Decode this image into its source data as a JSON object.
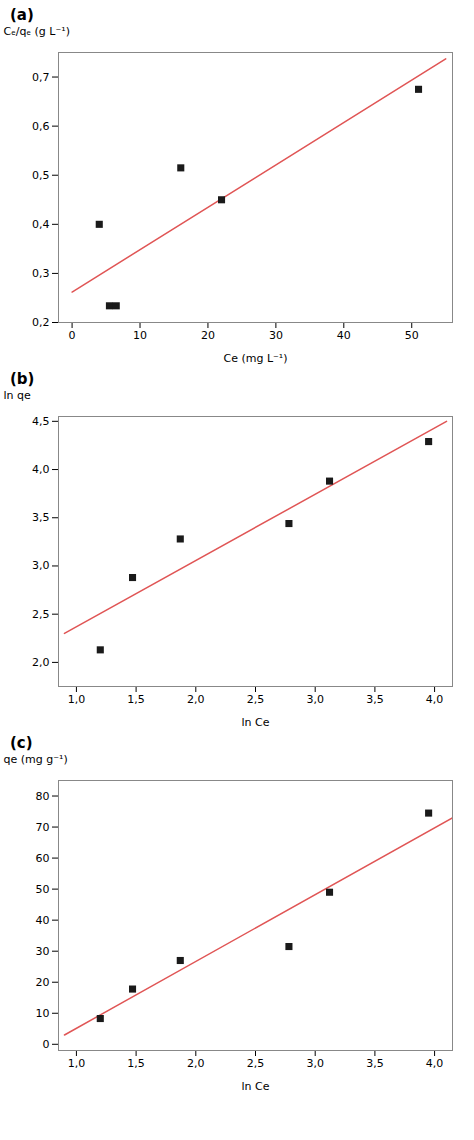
{
  "chart_data": [
    {
      "type": "scatter",
      "title": "(a)",
      "x_label": "Ce (mg L⁻¹)",
      "y_label": "Cₑ/qₑ (g L⁻¹)",
      "series": [
        {
          "type": "line",
          "color": "#e05555",
          "line_style": "solid",
          "x": [
            0,
            55
          ],
          "values": [
            0.262,
            0.737
          ]
        },
        {
          "type": "scatter",
          "color": "#1a1a1a",
          "marker": "square",
          "x": [
            4.0,
            5.5,
            6.5,
            16.0,
            22.0,
            51.0
          ],
          "values": [
            0.4,
            0.234,
            0.234,
            0.515,
            0.45,
            0.675
          ]
        }
      ],
      "xlim": [
        -2,
        56
      ],
      "ylim": [
        0.2,
        0.75
      ],
      "xticks": [
        0,
        10,
        20,
        30,
        40,
        50
      ],
      "yticks": [
        {
          "value": 0.2,
          "label": "0,2"
        },
        {
          "value": 0.3,
          "label": "0,3"
        },
        {
          "value": 0.4,
          "label": "0,4"
        },
        {
          "value": 0.5,
          "label": "0,5"
        },
        {
          "value": 0.6,
          "label": "0,6"
        },
        {
          "value": 0.7,
          "label": "0,7"
        }
      ]
    },
    {
      "type": "scatter",
      "title": "(b)",
      "x_label": "ln Ce",
      "y_label": "ln qe",
      "series": [
        {
          "type": "line",
          "color": "#e05555",
          "line_style": "solid",
          "x": [
            0.9,
            4.1
          ],
          "values": [
            2.3,
            4.5
          ]
        },
        {
          "type": "scatter",
          "color": "#1a1a1a",
          "marker": "square",
          "x": [
            1.2,
            1.47,
            1.87,
            2.78,
            3.12,
            3.95
          ],
          "values": [
            2.13,
            2.88,
            3.28,
            3.44,
            3.88,
            4.29
          ]
        }
      ],
      "xlim": [
        0.85,
        4.15
      ],
      "ylim": [
        1.75,
        4.55
      ],
      "xticks": [
        {
          "value": 1.0,
          "label": "1,0"
        },
        {
          "value": 1.5,
          "label": "1,5"
        },
        {
          "value": 2.0,
          "label": "2,0"
        },
        {
          "value": 2.5,
          "label": "2,5"
        },
        {
          "value": 3.0,
          "label": "3,0"
        },
        {
          "value": 3.5,
          "label": "3,5"
        },
        {
          "value": 4.0,
          "label": "4,0"
        }
      ],
      "yticks": [
        {
          "value": 2.0,
          "label": "2,0"
        },
        {
          "value": 2.5,
          "label": "2,5"
        },
        {
          "value": 3.0,
          "label": "3,0"
        },
        {
          "value": 3.5,
          "label": "3,5"
        },
        {
          "value": 4.0,
          "label": "4,0"
        },
        {
          "value": 4.5,
          "label": "4,5"
        }
      ]
    },
    {
      "type": "scatter",
      "title": "(c)",
      "x_label": "ln Ce",
      "y_label": "qe (mg g⁻¹)",
      "series": [
        {
          "type": "line",
          "color": "#e05555",
          "line_style": "solid",
          "x": [
            0.9,
            4.15
          ],
          "values": [
            3.0,
            73.0
          ]
        },
        {
          "type": "scatter",
          "color": "#1a1a1a",
          "marker": "square",
          "x": [
            1.2,
            1.47,
            1.87,
            2.78,
            3.12,
            3.95
          ],
          "values": [
            8.3,
            17.8,
            27.0,
            31.5,
            49.0,
            74.5
          ]
        }
      ],
      "xlim": [
        0.85,
        4.15
      ],
      "ylim": [
        -2,
        85
      ],
      "xticks": [
        {
          "value": 1.0,
          "label": "1,0"
        },
        {
          "value": 1.5,
          "label": "1,5"
        },
        {
          "value": 2.0,
          "label": "2,0"
        },
        {
          "value": 2.5,
          "label": "2,5"
        },
        {
          "value": 3.0,
          "label": "3,0"
        },
        {
          "value": 3.5,
          "label": "3,5"
        },
        {
          "value": 4.0,
          "label": "4,0"
        }
      ],
      "yticks": [
        0,
        10,
        20,
        30,
        40,
        50,
        60,
        70,
        80
      ]
    }
  ]
}
